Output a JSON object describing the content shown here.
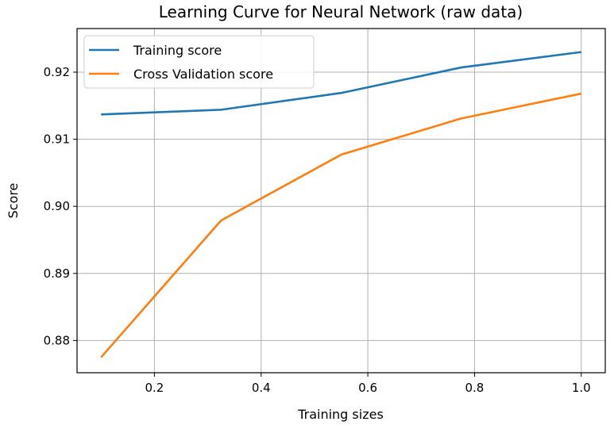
{
  "chart_data": {
    "type": "line",
    "title": "Learning Curve for Neural Network (raw data)",
    "xlabel": "Training sizes",
    "ylabel": "Score",
    "xlim": [
      0.055,
      1.045
    ],
    "ylim": [
      0.8752,
      0.9265
    ],
    "xticks": [
      0.2,
      0.4,
      0.6,
      0.8,
      1.0
    ],
    "xtick_labels": [
      "0.2",
      "0.4",
      "0.6",
      "0.8",
      "1.0"
    ],
    "yticks": [
      0.88,
      0.89,
      0.9,
      0.91,
      0.92
    ],
    "ytick_labels": [
      "0.88",
      "0.89",
      "0.90",
      "0.91",
      "0.92"
    ],
    "grid": true,
    "legend_position": "upper-left",
    "x": [
      0.1,
      0.325,
      0.55,
      0.775,
      1.0
    ],
    "series": [
      {
        "name": "Training score",
        "color": "#1f77b4",
        "values": [
          0.9137,
          0.9144,
          0.9169,
          0.9207,
          0.923
        ]
      },
      {
        "name": "Cross Validation score",
        "color": "#ff7f0e",
        "values": [
          0.8775,
          0.8979,
          0.9077,
          0.9131,
          0.9168
        ]
      }
    ]
  }
}
